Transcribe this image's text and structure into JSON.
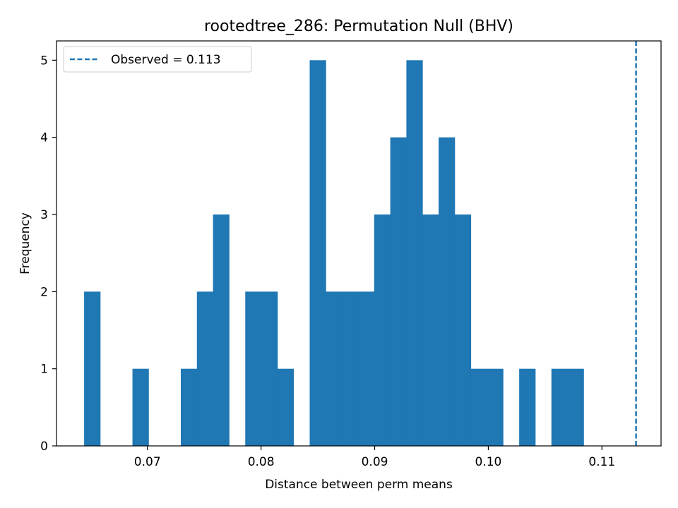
{
  "chart_data": {
    "type": "bar",
    "title": "rootedtree_286: Permutation Null (BHV)",
    "xlabel": "Distance between perm means",
    "ylabel": "Frequency",
    "xlim": [
      0.062,
      0.1152
    ],
    "ylim": [
      0,
      5.25
    ],
    "xticks": [
      0.07,
      0.08,
      0.09,
      0.1,
      0.11
    ],
    "xtick_labels": [
      "0.07",
      "0.08",
      "0.09",
      "0.10",
      "0.11"
    ],
    "yticks": [
      0,
      1,
      2,
      3,
      4,
      5
    ],
    "ytick_labels": [
      "0",
      "1",
      "2",
      "3",
      "4",
      "5"
    ],
    "bin_start": 0.06443,
    "bin_width": 0.001418,
    "counts": [
      2,
      0,
      0,
      1,
      0,
      0,
      1,
      2,
      3,
      0,
      2,
      2,
      1,
      0,
      5,
      2,
      2,
      2,
      3,
      4,
      5,
      3,
      4,
      3,
      1,
      1,
      0,
      1,
      0,
      1,
      1
    ],
    "color": "#1f77b4",
    "observed": {
      "value": 0.113,
      "label": "Observed = 0.113",
      "color": "#1f77b4",
      "style": "dashed"
    },
    "legend": {
      "position": "top-left",
      "entries": [
        "Observed = 0.113"
      ]
    },
    "grid": false
  }
}
